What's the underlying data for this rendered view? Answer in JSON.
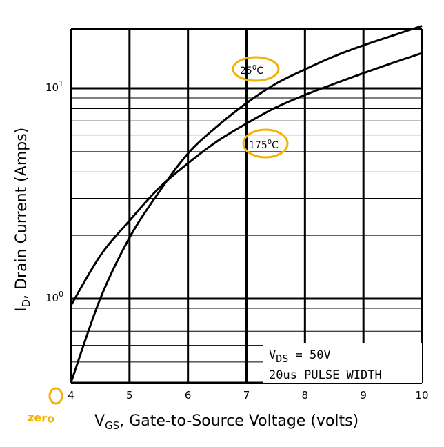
{
  "chart_data": {
    "type": "line",
    "title": "",
    "xlabel": {
      "main": "V",
      "sub": "GS",
      "rest": ", Gate-to-Source Voltage (volts)"
    },
    "ylabel": {
      "main": "I",
      "sub": "D",
      "rest": ", Drain Current (Amps)"
    },
    "x_scale": "linear",
    "y_scale": "log",
    "xlim": [
      4,
      10
    ],
    "ylim": [
      0.4,
      20
    ],
    "x_ticks": [
      "4",
      "5",
      "6",
      "7",
      "8",
      "9",
      "10"
    ],
    "y_ticks": [
      {
        "value": 1,
        "base": "10",
        "exp": "0"
      },
      {
        "value": 10,
        "base": "10",
        "exp": "1"
      }
    ],
    "grid": true,
    "series": [
      {
        "name": "25°C",
        "label": {
          "base": "25",
          "sup": "0",
          "suffix": "C"
        },
        "x": [
          4.0,
          4.5,
          5.0,
          5.5,
          6.0,
          6.5,
          7.0,
          7.5,
          8.0,
          8.5,
          9.0,
          9.5,
          10.0
        ],
        "y": [
          0.4,
          1.0,
          1.95,
          3.2,
          4.9,
          6.6,
          8.5,
          10.5,
          12.3,
          14.2,
          16.0,
          17.8,
          19.8
        ]
      },
      {
        "name": "175°C",
        "label": {
          "base": "175",
          "sup": "0",
          "suffix": "C"
        },
        "x": [
          4.0,
          4.5,
          5.0,
          5.5,
          6.0,
          6.5,
          7.0,
          7.5,
          8.0,
          8.5,
          9.0,
          9.5,
          10.0
        ],
        "y": [
          0.93,
          1.6,
          2.35,
          3.35,
          4.4,
          5.6,
          6.8,
          8.1,
          9.3,
          10.5,
          11.8,
          13.2,
          14.7
        ]
      }
    ],
    "annotations": [
      {
        "main": "V",
        "sub": "DS",
        "rest": " = 50V"
      },
      {
        "text": "20us PULSE WIDTH"
      }
    ],
    "handwritten": {
      "zero_circle": "0",
      "zero_text": "zero"
    },
    "colors": {
      "grid": "#000000",
      "line": "#000000",
      "highlight": "#f2b200"
    }
  }
}
